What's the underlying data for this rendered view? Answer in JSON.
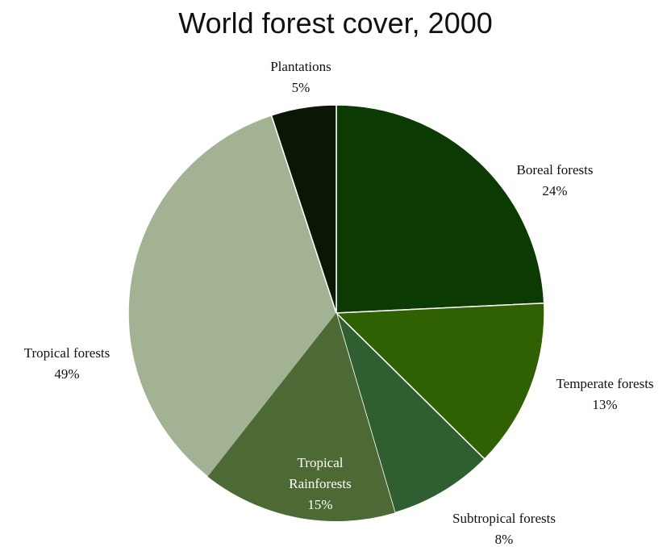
{
  "chart_data": {
    "type": "pie",
    "title": "World forest cover, 2000",
    "categories": [
      "Boreal forests",
      "Temperate forests",
      "Subtropical forests",
      "Tropical forests",
      "Plantations"
    ],
    "values": [
      24,
      13,
      8,
      49,
      5
    ],
    "value_labels": [
      "24%",
      "13%",
      "8%",
      "49%",
      "5%"
    ],
    "colors": [
      "#0b3b02",
      "#2f6103",
      "#2f5f30",
      "#a3b293",
      "#0b1606"
    ],
    "sub_categories": [
      "Tropical Rainforests"
    ],
    "sub_values": [
      15
    ],
    "sub_value_labels": [
      "15%"
    ],
    "sub_colors": [
      "#4d6a35"
    ]
  }
}
